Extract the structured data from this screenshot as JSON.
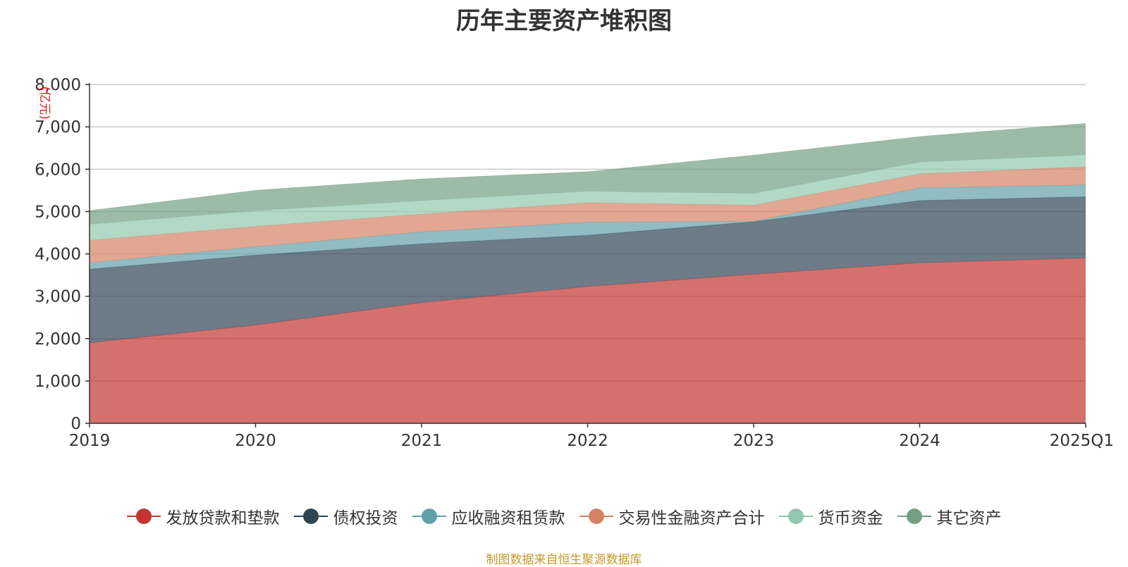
{
  "chart_data": {
    "type": "area",
    "stacked": true,
    "title": "历年主要资产堆积图",
    "ylabel": "(亿元)",
    "xlabel": "",
    "categories": [
      "2019",
      "2020",
      "2021",
      "2022",
      "2023",
      "2024",
      "2025Q1"
    ],
    "ylim": [
      0,
      8000
    ],
    "yticks": [
      0,
      1000,
      2000,
      3000,
      4000,
      5000,
      6000,
      7000,
      8000
    ],
    "ytick_labels": [
      "0",
      "1,000",
      "2,000",
      "3,000",
      "4,000",
      "5,000",
      "6,000",
      "7,000",
      "8,000"
    ],
    "grid": true,
    "legend_position": "bottom",
    "series": [
      {
        "name": "发放贷款和垫款",
        "color": "#c23531",
        "values": [
          1900,
          2320,
          2850,
          3230,
          3520,
          3790,
          3900
        ]
      },
      {
        "name": "债权投资",
        "color": "#2f4554",
        "values": [
          1740,
          1650,
          1390,
          1210,
          1240,
          1470,
          1450
        ]
      },
      {
        "name": "应收融资租赁款",
        "color": "#61a0a8",
        "values": [
          150,
          200,
          280,
          310,
          10,
          300,
          280
        ]
      },
      {
        "name": "交易性金融资产合计",
        "color": "#d48265",
        "values": [
          530,
          480,
          420,
          460,
          380,
          330,
          430
        ]
      },
      {
        "name": "货币资金",
        "color": "#91c7ae",
        "values": [
          380,
          370,
          320,
          270,
          280,
          280,
          280
        ]
      },
      {
        "name": "其它资产",
        "color": "#749f83",
        "values": [
          320,
          480,
          510,
          460,
          900,
          600,
          740
        ]
      }
    ]
  },
  "footer": "制图数据来自恒生聚源数据库"
}
